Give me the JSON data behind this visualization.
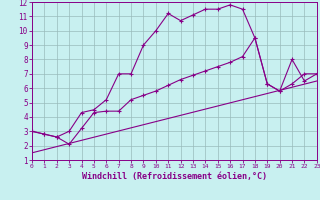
{
  "xlabel": "Windchill (Refroidissement éolien,°C)",
  "background_color": "#c8f0f0",
  "line_color": "#880088",
  "grid_color": "#99bbbb",
  "xlim": [
    0,
    23
  ],
  "ylim": [
    1,
    12
  ],
  "xticks": [
    0,
    1,
    2,
    3,
    4,
    5,
    6,
    7,
    8,
    9,
    10,
    11,
    12,
    13,
    14,
    15,
    16,
    17,
    18,
    19,
    20,
    21,
    22,
    23
  ],
  "yticks": [
    1,
    2,
    3,
    4,
    5,
    6,
    7,
    8,
    9,
    10,
    11,
    12
  ],
  "curve1_x": [
    0,
    1,
    2,
    3,
    4,
    5,
    6,
    7,
    8,
    9,
    10,
    11,
    12,
    13,
    14,
    15,
    16,
    17,
    18,
    19,
    20,
    21,
    22,
    23
  ],
  "curve1_y": [
    3.0,
    2.8,
    2.6,
    3.0,
    4.3,
    4.5,
    5.2,
    7.0,
    7.0,
    9.0,
    10.0,
    11.2,
    10.7,
    11.1,
    11.5,
    11.5,
    11.8,
    11.5,
    9.5,
    6.3,
    5.8,
    8.0,
    6.5,
    7.0
  ],
  "curve2_x": [
    0,
    1,
    2,
    3,
    4,
    5,
    6,
    7,
    8,
    9,
    10,
    11,
    12,
    13,
    14,
    15,
    16,
    17,
    18,
    19,
    20,
    21,
    22,
    23
  ],
  "curve2_y": [
    3.0,
    2.8,
    2.6,
    2.1,
    3.2,
    4.3,
    4.4,
    4.4,
    5.2,
    5.5,
    5.8,
    6.2,
    6.6,
    6.9,
    7.2,
    7.5,
    7.8,
    8.2,
    9.5,
    6.3,
    5.8,
    6.3,
    7.0,
    7.0
  ],
  "line3_x": [
    0,
    23
  ],
  "line3_y": [
    1.5,
    6.5
  ],
  "lw": 0.8,
  "ms": 3.5,
  "xlabel_fontsize": 6.0,
  "tick_fontsize_x": 4.5,
  "tick_fontsize_y": 5.5
}
